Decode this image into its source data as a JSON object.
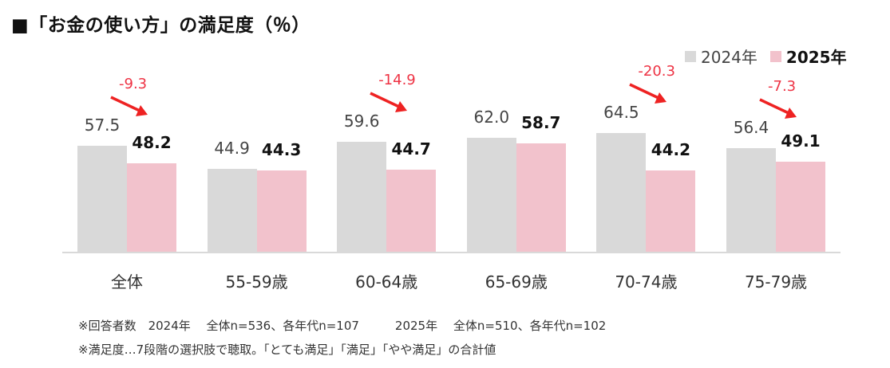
{
  "title": "■「お金の使い方」の満足度（％）",
  "legend": [
    {
      "label": "2024年",
      "color": "#d9d9d9"
    },
    {
      "label": "2025年",
      "color": "#f2c2cc"
    }
  ],
  "colors": {
    "y2024": "#d9d9d9",
    "y2025": "#f2c2cc",
    "diff": "#ee2222",
    "diff_text": "#ee3344"
  },
  "chart_data": {
    "type": "bar",
    "title": "「お金の使い方」の満足度（％）",
    "xlabel": "",
    "ylabel": "%",
    "categories": [
      "全体",
      "55-59歳",
      "60-64歳",
      "65-69歳",
      "70-74歳",
      "75-79歳"
    ],
    "series": [
      {
        "name": "2024年",
        "values": [
          57.5,
          44.9,
          59.6,
          62.0,
          64.5,
          56.4
        ]
      },
      {
        "name": "2025年",
        "values": [
          48.2,
          44.3,
          44.7,
          58.7,
          44.2,
          49.1
        ]
      }
    ],
    "value_labels": {
      "2024年": [
        "57.5",
        "44.9",
        "59.6",
        "62.0",
        "64.5",
        "56.4"
      ],
      "2025年": [
        "48.2",
        "44.3",
        "44.7",
        "58.7",
        "44.2",
        "49.1"
      ]
    },
    "annotations": [
      {
        "category": "全体",
        "text": "-9.3"
      },
      {
        "category": "60-64歳",
        "text": "-14.9"
      },
      {
        "category": "70-74歳",
        "text": "-20.3"
      },
      {
        "category": "75-79歳",
        "text": "-7.3"
      }
    ],
    "legend_position": "top-right",
    "grid": false,
    "ylim": [
      0,
      70
    ]
  },
  "notes": [
    "※回答者数　2024年　 全体n=536、各年代n=107　　　2025年　 全体n=510、各年代n=102",
    "※満足度…7段階の選択肢で聴取。「とても満足」「満足」「やや満足」の合計値"
  ]
}
